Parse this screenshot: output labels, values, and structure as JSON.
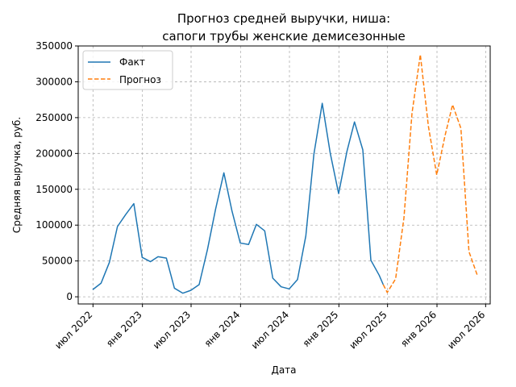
{
  "chart_data": {
    "type": "line",
    "title_lines": [
      "Прогноз средней выручки, ниша:",
      "сапоги трубы женские демисезонные"
    ],
    "xlabel": "Дата",
    "ylabel": "Средняя выручка, руб.",
    "ylim": [
      -10000,
      350000
    ],
    "xlim": [
      "2022-05-07",
      "2026-07-18"
    ],
    "grid": true,
    "legend_position": "top-left",
    "x_ticks": [
      {
        "date": "2022-07-01",
        "label": "июл 2022"
      },
      {
        "date": "2023-01-01",
        "label": "янв 2023"
      },
      {
        "date": "2023-07-01",
        "label": "июл 2023"
      },
      {
        "date": "2024-01-01",
        "label": "янв 2024"
      },
      {
        "date": "2024-07-01",
        "label": "июл 2024"
      },
      {
        "date": "2025-01-01",
        "label": "янв 2025"
      },
      {
        "date": "2025-07-01",
        "label": "июл 2025"
      },
      {
        "date": "2026-01-01",
        "label": "янв 2026"
      },
      {
        "date": "2026-07-01",
        "label": "июл 2026"
      }
    ],
    "y_ticks": [
      0,
      50000,
      100000,
      150000,
      200000,
      250000,
      300000,
      350000
    ],
    "series": [
      {
        "name": "Факт",
        "color": "#1f77b4",
        "dash": false,
        "points": [
          [
            "2022-06-30",
            10000
          ],
          [
            "2022-07-31",
            19000
          ],
          [
            "2022-08-31",
            48000
          ],
          [
            "2022-09-30",
            98000
          ],
          [
            "2022-10-31",
            115000
          ],
          [
            "2022-11-30",
            130000
          ],
          [
            "2022-12-31",
            55000
          ],
          [
            "2023-01-31",
            49000
          ],
          [
            "2023-02-28",
            56000
          ],
          [
            "2023-03-31",
            54000
          ],
          [
            "2023-04-30",
            12000
          ],
          [
            "2023-05-31",
            5000
          ],
          [
            "2023-06-30",
            9000
          ],
          [
            "2023-07-31",
            17000
          ],
          [
            "2023-08-31",
            66000
          ],
          [
            "2023-09-30",
            122000
          ],
          [
            "2023-10-31",
            173000
          ],
          [
            "2023-11-30",
            120000
          ],
          [
            "2023-12-31",
            75000
          ],
          [
            "2024-01-31",
            73000
          ],
          [
            "2024-02-29",
            101000
          ],
          [
            "2024-03-31",
            92000
          ],
          [
            "2024-04-30",
            26000
          ],
          [
            "2024-05-31",
            14000
          ],
          [
            "2024-06-30",
            11000
          ],
          [
            "2024-07-31",
            24000
          ],
          [
            "2024-08-31",
            85000
          ],
          [
            "2024-09-30",
            199000
          ],
          [
            "2024-10-31",
            270000
          ],
          [
            "2024-11-30",
            200000
          ],
          [
            "2024-12-31",
            144000
          ],
          [
            "2025-01-31",
            203000
          ],
          [
            "2025-02-28",
            244000
          ],
          [
            "2025-03-31",
            205000
          ],
          [
            "2025-04-30",
            51000
          ],
          [
            "2025-05-31",
            30000
          ],
          [
            "2025-06-15",
            17000
          ]
        ]
      },
      {
        "name": "Прогноз",
        "color": "#ff7f0e",
        "dash": true,
        "points": [
          [
            "2025-06-15",
            17000
          ],
          [
            "2025-06-30",
            6000
          ],
          [
            "2025-07-31",
            25000
          ],
          [
            "2025-08-31",
            110000
          ],
          [
            "2025-09-30",
            256000
          ],
          [
            "2025-10-31",
            338000
          ],
          [
            "2025-11-30",
            238000
          ],
          [
            "2025-12-31",
            170000
          ],
          [
            "2026-01-31",
            225000
          ],
          [
            "2026-02-28",
            268000
          ],
          [
            "2026-03-31",
            235000
          ],
          [
            "2026-04-30",
            63000
          ],
          [
            "2026-05-31",
            30000
          ]
        ]
      }
    ]
  }
}
